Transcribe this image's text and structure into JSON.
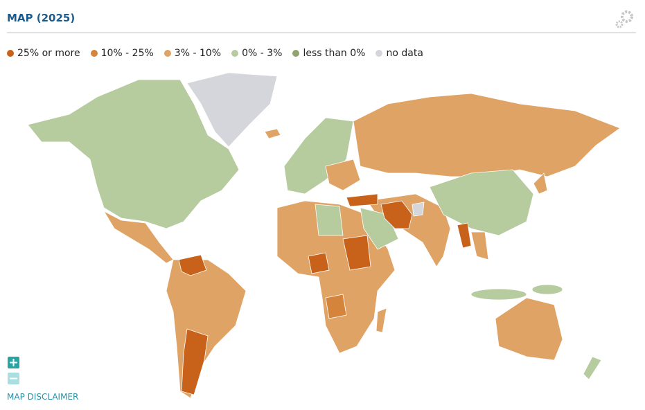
{
  "header": {
    "title": "MAP (2025)"
  },
  "legend": [
    {
      "label": "25% or more",
      "color": "#c8621a"
    },
    {
      "label": "10% - 25%",
      "color": "#d5843c"
    },
    {
      "label": "3% - 10%",
      "color": "#e0a366"
    },
    {
      "label": "0% - 3%",
      "color": "#b6cc9f"
    },
    {
      "label": "less than 0%",
      "color": "#8fa46f"
    },
    {
      "label": "no data",
      "color": "#d5d6dc"
    }
  ],
  "footer": {
    "disclaimer": "MAP DISCLAIMER"
  }
}
